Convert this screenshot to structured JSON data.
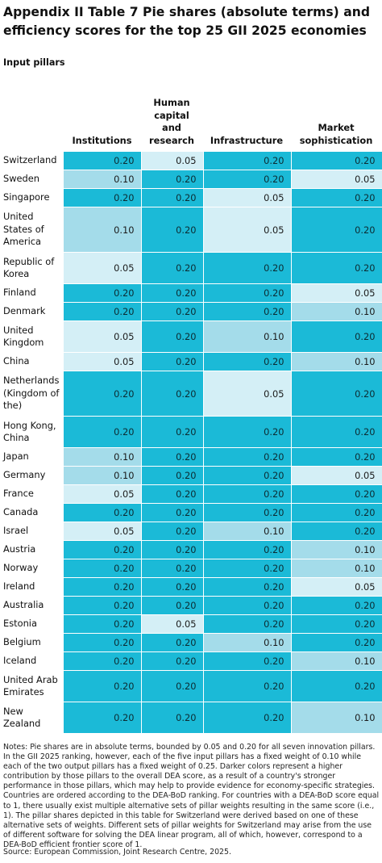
{
  "title": "Appendix II Table 7 Pie shares (absolute terms) and efficiency scores for the top 25 GII 2025 economies",
  "subtitle": "Input pillars",
  "columns": [
    "Institutions",
    "Human capital and research",
    "Infrastructure",
    "Market sophistication"
  ],
  "colors": {
    "0.20": "#1bbad7",
    "0.10": "#a4dcea",
    "0.05": "#d4eff6"
  },
  "rows": [
    {
      "country": "Switzerland",
      "values": [
        "0.20",
        "0.05",
        "0.20",
        "0.20"
      ]
    },
    {
      "country": "Sweden",
      "values": [
        "0.10",
        "0.20",
        "0.20",
        "0.05"
      ]
    },
    {
      "country": "Singapore",
      "values": [
        "0.20",
        "0.20",
        "0.05",
        "0.20"
      ]
    },
    {
      "country": "United States of America",
      "values": [
        "0.10",
        "0.20",
        "0.05",
        "0.20"
      ]
    },
    {
      "country": "Republic of Korea",
      "values": [
        "0.05",
        "0.20",
        "0.20",
        "0.20"
      ]
    },
    {
      "country": "Finland",
      "values": [
        "0.20",
        "0.20",
        "0.20",
        "0.05"
      ]
    },
    {
      "country": "Denmark",
      "values": [
        "0.20",
        "0.20",
        "0.20",
        "0.10"
      ]
    },
    {
      "country": "United Kingdom",
      "values": [
        "0.05",
        "0.20",
        "0.10",
        "0.20"
      ]
    },
    {
      "country": "China",
      "values": [
        "0.05",
        "0.20",
        "0.20",
        "0.10"
      ]
    },
    {
      "country": "Netherlands (Kingdom of the)",
      "values": [
        "0.20",
        "0.20",
        "0.05",
        "0.20"
      ]
    },
    {
      "country": "Hong Kong, China",
      "values": [
        "0.20",
        "0.20",
        "0.20",
        "0.20"
      ]
    },
    {
      "country": "Japan",
      "values": [
        "0.10",
        "0.20",
        "0.20",
        "0.20"
      ]
    },
    {
      "country": "Germany",
      "values": [
        "0.10",
        "0.20",
        "0.20",
        "0.05"
      ]
    },
    {
      "country": "France",
      "values": [
        "0.05",
        "0.20",
        "0.20",
        "0.20"
      ]
    },
    {
      "country": "Canada",
      "values": [
        "0.20",
        "0.20",
        "0.20",
        "0.20"
      ]
    },
    {
      "country": "Israel",
      "values": [
        "0.05",
        "0.20",
        "0.10",
        "0.20"
      ]
    },
    {
      "country": "Austria",
      "values": [
        "0.20",
        "0.20",
        "0.20",
        "0.10"
      ]
    },
    {
      "country": "Norway",
      "values": [
        "0.20",
        "0.20",
        "0.20",
        "0.10"
      ]
    },
    {
      "country": "Ireland",
      "values": [
        "0.20",
        "0.20",
        "0.20",
        "0.05"
      ]
    },
    {
      "country": "Australia",
      "values": [
        "0.20",
        "0.20",
        "0.20",
        "0.20"
      ]
    },
    {
      "country": "Estonia",
      "values": [
        "0.20",
        "0.05",
        "0.20",
        "0.20"
      ]
    },
    {
      "country": "Belgium",
      "values": [
        "0.20",
        "0.20",
        "0.10",
        "0.20"
      ]
    },
    {
      "country": "Iceland",
      "values": [
        "0.20",
        "0.20",
        "0.20",
        "0.10"
      ]
    },
    {
      "country": "United Arab Emirates",
      "values": [
        "0.20",
        "0.20",
        "0.20",
        "0.20"
      ]
    },
    {
      "country": "New Zealand",
      "values": [
        "0.20",
        "0.20",
        "0.20",
        "0.10"
      ]
    }
  ],
  "notes": "Notes: Pie shares are in absolute terms, bounded by 0.05 and 0.20 for all seven innovation pillars. In the GII 2025 ranking, however, each of the five input pillars has a fixed weight of 0.10 while each of the two output pillars has a fixed weight of 0.25. Darker colors represent a higher contribution by those pillars to the overall DEA score, as a result of a country's stronger performance in those pillars, which may help to provide evidence for economy-specific strategies. Countries are ordered according to the DEA-BoD ranking. For countries with a DEA-BoD score equal to 1, there usually exist multiple alternative sets of pillar weights resulting in the same score (i.e., 1). The pillar shares depicted in this table for Switzerland were derived based on one of these alternative sets of weights. Different sets of pillar weights for Switzerland may arise from the use of different software for solving the DEA linear program, all of which, however, correspond to a DEA-BoD efficient frontier score of 1.",
  "source": "Source: European Commission, Joint Research Centre, 2025."
}
